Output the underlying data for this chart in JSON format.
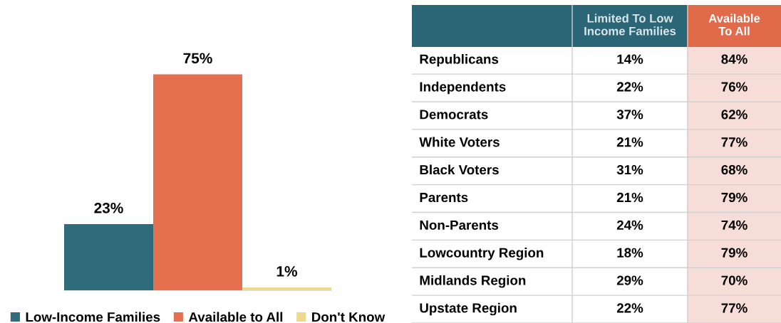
{
  "chart_data": [
    {
      "type": "bar",
      "categories": [
        null
      ],
      "legend": "bottom",
      "series": [
        {
          "name": "Low-Income Families",
          "color": "#2e6b7b",
          "values": [
            23
          ],
          "value_labels": [
            "23%"
          ]
        },
        {
          "name": "Available to All",
          "color": "#e4704f",
          "values": [
            75
          ],
          "value_labels": [
            "75%"
          ]
        },
        {
          "name": "Don't Know",
          "color": "#ead98e",
          "values": [
            1
          ],
          "value_labels": [
            "1%"
          ]
        }
      ]
    },
    {
      "type": "other",
      "categories": [
        "Republicans",
        "Independents",
        "Democrats",
        "White Voters",
        "Black Voters",
        "Parents",
        "Non-Parents",
        "Lowcountry Region",
        "Midlands Region",
        "Upstate Region"
      ],
      "colors": [
        "#2b6677",
        "#2b6677",
        "#e06a4a"
      ],
      "series": [
        {
          "name": "Limited To Low\nIncome Families",
          "color": "#ffffff",
          "values": [
            14,
            22,
            37,
            21,
            31,
            21,
            24,
            18,
            29,
            22
          ],
          "value_labels": [
            "14%",
            "22%",
            "37%",
            "21%",
            "31%",
            "21%",
            "24%",
            "18%",
            "29%",
            "22%"
          ]
        },
        {
          "name": "Available\nTo All",
          "color": "#f7ddd7",
          "values": [
            84,
            76,
            62,
            77,
            68,
            79,
            74,
            79,
            70,
            77
          ],
          "value_labels": [
            "84%",
            "76%",
            "62%",
            "77%",
            "68%",
            "79%",
            "74%",
            "79%",
            "70%",
            "77%"
          ]
        }
      ]
    }
  ]
}
